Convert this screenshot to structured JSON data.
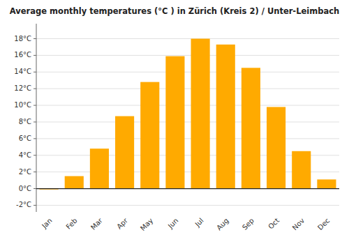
{
  "chart_data": {
    "type": "bar",
    "title": "Average monthly temperatures (°C ) in Zürich (Kreis 2) / Unter-Leimbach",
    "categories": [
      "Jan",
      "Feb",
      "Mar",
      "Apr",
      "May",
      "Jun",
      "Jul",
      "Aug",
      "Sep",
      "Oct",
      "Nov",
      "Dec"
    ],
    "values": [
      -0.1,
      1.5,
      4.8,
      8.7,
      12.8,
      15.9,
      18.0,
      17.3,
      14.5,
      9.8,
      4.5,
      1.1
    ],
    "color": "#FFAA00",
    "ylim": [
      -2.8,
      19.8
    ],
    "yticks": [
      {
        "value": -2,
        "label": "-2°C"
      },
      {
        "value": 0,
        "label": "0°C"
      },
      {
        "value": 2,
        "label": "2°C"
      },
      {
        "value": 4,
        "label": "4°C"
      },
      {
        "value": 6,
        "label": "6°C"
      },
      {
        "value": 8,
        "label": "8°C"
      },
      {
        "value": 10,
        "label": "10°C"
      },
      {
        "value": 12,
        "label": "12°C"
      },
      {
        "value": 14,
        "label": "14°C"
      },
      {
        "value": 16,
        "label": "16°C"
      },
      {
        "value": 18,
        "label": "18°C"
      }
    ],
    "grid": true
  }
}
